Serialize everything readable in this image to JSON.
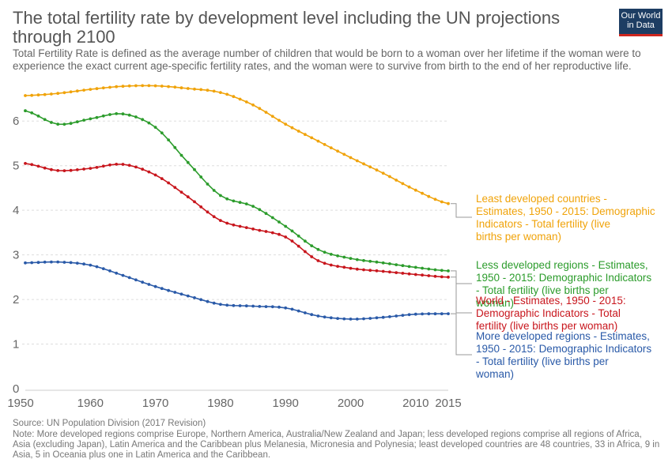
{
  "header": {
    "title": "The total fertility rate by development level including the UN projections through 2100",
    "subtitle": "Total Fertility Rate is defined as the average number of children that would be born to a woman over her lifetime if the woman were to experience the exact current age-specific fertility rates, and the woman were to survive from birth to the end of her reproductive life.",
    "logo_line1": "Our World",
    "logo_line2": "in Data"
  },
  "footer": {
    "source": "Source: UN Population Division (2017 Revision)",
    "note": "Note: More developed regions comprise Europe, Northern America, Australia/New Zealand and Japan; less developed regions comprise all regions of Africa, Asia (excluding Japan), Latin America and the Caribbean plus Melanesia, Micronesia and Polynesia; least developed countries are 48 countries, 33 in Africa, 9 in Asia, 5 in Oceania plus one in Latin America and the Caribbean."
  },
  "chart_data": {
    "type": "line",
    "xlim": [
      1950,
      2015
    ],
    "ylim": [
      0,
      6.5
    ],
    "x_ticks": [
      "1950",
      "1960",
      "1970",
      "1980",
      "1990",
      "2000",
      "2010",
      "2015"
    ],
    "x_tick_values": [
      1950,
      1960,
      1970,
      1980,
      1990,
      2000,
      2010,
      2015
    ],
    "y_ticks": [
      "0",
      "1",
      "2",
      "3",
      "4",
      "5",
      "6"
    ],
    "y_tick_values": [
      0,
      1,
      2,
      3,
      4,
      5,
      6
    ],
    "grid": "horizontal dashed",
    "legend_placement": "right, end-of-line labels",
    "x": [
      1950,
      1955,
      1960,
      1965,
      1970,
      1975,
      1980,
      1985,
      1990,
      1995,
      2000,
      2005,
      2010,
      2015
    ],
    "series": [
      {
        "name": "Least developed countries - Estimates, 1950 - 2015: Demographic Indicators - Total fertility (live births per woman)",
        "color": "#f0a30a",
        "values": [
          6.57,
          6.62,
          6.71,
          6.78,
          6.79,
          6.73,
          6.64,
          6.36,
          5.93,
          5.55,
          5.18,
          4.83,
          4.45,
          4.15
        ]
      },
      {
        "name": "Less developed regions - Estimates, 1950 - 2015: Demographic Indicators - Total fertility (live births per woman)",
        "color": "#2c9c2c",
        "values": [
          6.23,
          5.93,
          6.05,
          6.16,
          5.86,
          5.07,
          4.33,
          4.09,
          3.64,
          3.12,
          2.92,
          2.82,
          2.72,
          2.64
        ]
      },
      {
        "name": "World - Estimates, 1950 - 2015: Demographic Indicators - Total fertility (live births per woman)",
        "color": "#c8161d",
        "values": [
          5.05,
          4.89,
          4.94,
          5.03,
          4.79,
          4.3,
          3.77,
          3.58,
          3.4,
          2.87,
          2.7,
          2.63,
          2.56,
          2.5
        ]
      },
      {
        "name": "More developed regions - Estimates, 1950 - 2015: Demographic Indicators - Total fertility (live births per woman)",
        "color": "#2a5aa8",
        "values": [
          2.82,
          2.84,
          2.77,
          2.54,
          2.29,
          2.08,
          1.89,
          1.85,
          1.81,
          1.63,
          1.56,
          1.6,
          1.67,
          1.68
        ]
      }
    ]
  }
}
